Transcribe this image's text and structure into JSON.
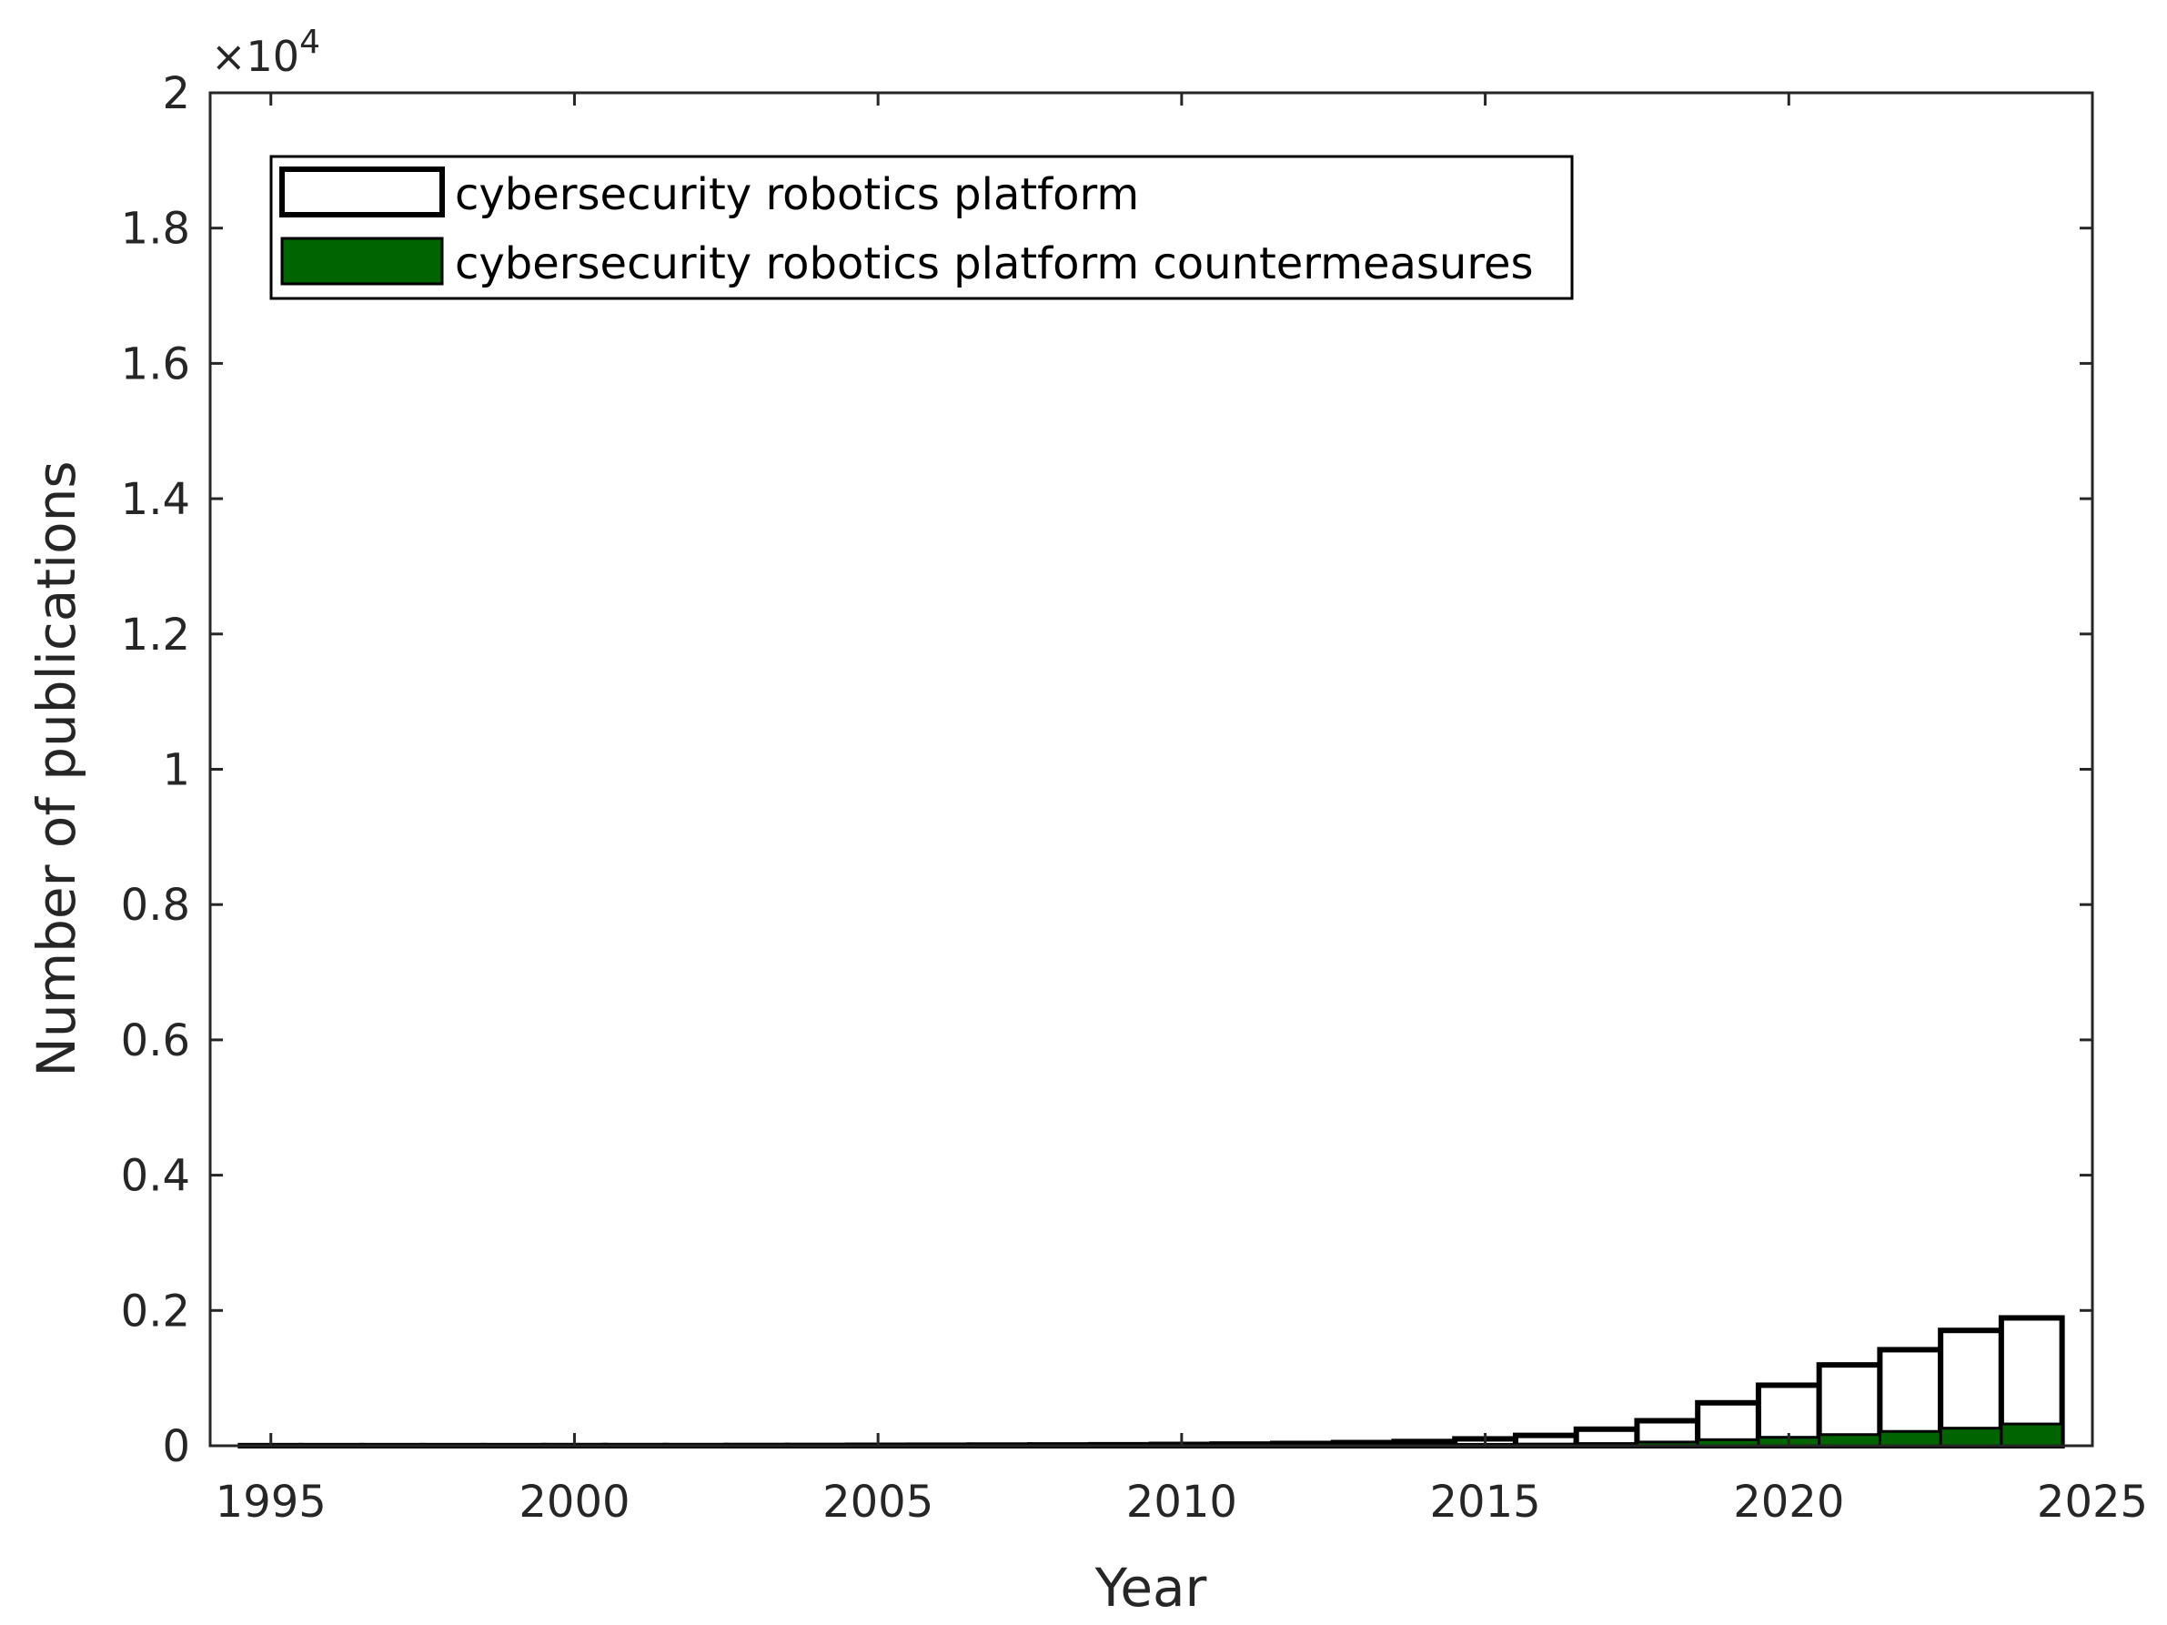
{
  "chart_data": {
    "type": "bar",
    "title": "",
    "xlabel": "Year",
    "ylabel": "Number of publications",
    "y_multiplier": "×10",
    "y_multiplier_exponent": "4",
    "xlim": [
      1994,
      2025
    ],
    "ylim": [
      0,
      2
    ],
    "x_ticks": [
      "1995",
      "2000",
      "2005",
      "2010",
      "2015",
      "2020",
      "2025"
    ],
    "y_ticks": [
      "0",
      "0.2",
      "0.4",
      "0.6",
      "0.8",
      "1",
      "1.2",
      "1.4",
      "1.6",
      "1.8",
      "2"
    ],
    "grid": false,
    "box": true,
    "legend_position": "top-left",
    "categories": [
      1995,
      1996,
      1997,
      1998,
      1999,
      2000,
      2001,
      2002,
      2003,
      2004,
      2005,
      2006,
      2007,
      2008,
      2009,
      2010,
      2011,
      2012,
      2013,
      2014,
      2015,
      2016,
      2017,
      2018,
      2019,
      2020,
      2021,
      2022,
      2023,
      2024
    ],
    "series": [
      {
        "name": "cybersecurity robotics platform",
        "color": "#ffffff",
        "edge": "#000000",
        "values": [
          0.0002,
          0.0002,
          0.0002,
          0.0002,
          0.0002,
          0.0003,
          0.0003,
          0.0003,
          0.0004,
          0.0005,
          0.0007,
          0.0008,
          0.001,
          0.0012,
          0.0015,
          0.002,
          0.0025,
          0.0034,
          0.0047,
          0.0063,
          0.0102,
          0.0153,
          0.0245,
          0.037,
          0.0635,
          0.0895,
          0.1195,
          0.142,
          0.1705,
          0.189
        ]
      },
      {
        "name": "cybersecurity robotics platform countermeasures",
        "color": "#006400",
        "edge": "#000000",
        "values": [
          0,
          0,
          0,
          0,
          0,
          0,
          0,
          0,
          0,
          0.0001,
          0.0001,
          0.0001,
          0.0001,
          0.0002,
          0.0002,
          0.0003,
          0.0004,
          0.0006,
          0.0008,
          0.0011,
          0.0015,
          0.0025,
          0.0033,
          0.0055,
          0.009,
          0.0125,
          0.0165,
          0.0212,
          0.026,
          0.0322
        ]
      }
    ]
  }
}
